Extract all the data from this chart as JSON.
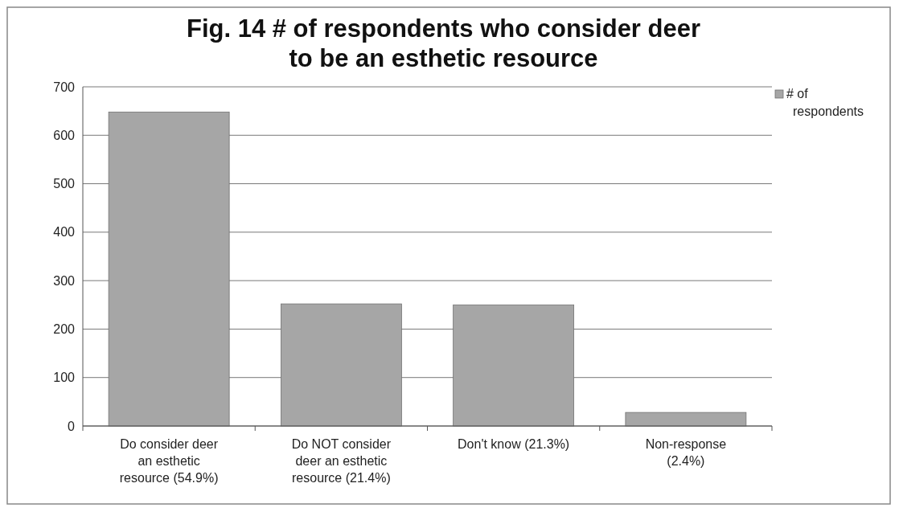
{
  "chart_data": {
    "type": "bar",
    "title": "Fig. 14 # of respondents who consider deer to be an esthetic resource",
    "categories": [
      "Do consider deer an esthetic resource (54.9%)",
      "Do NOT consider deer an esthetic resource (21.4%)",
      "Don't know (21.3%)",
      "Non-response (2.4%)"
    ],
    "series": [
      {
        "name": "# of respondents",
        "color": "#a6a6a6",
        "values": [
          648,
          252,
          250,
          28
        ]
      }
    ],
    "ylim": [
      0,
      700
    ],
    "yticks": [
      0,
      100,
      200,
      300,
      400,
      500,
      600,
      700
    ],
    "grid": "y",
    "legend": "right"
  }
}
